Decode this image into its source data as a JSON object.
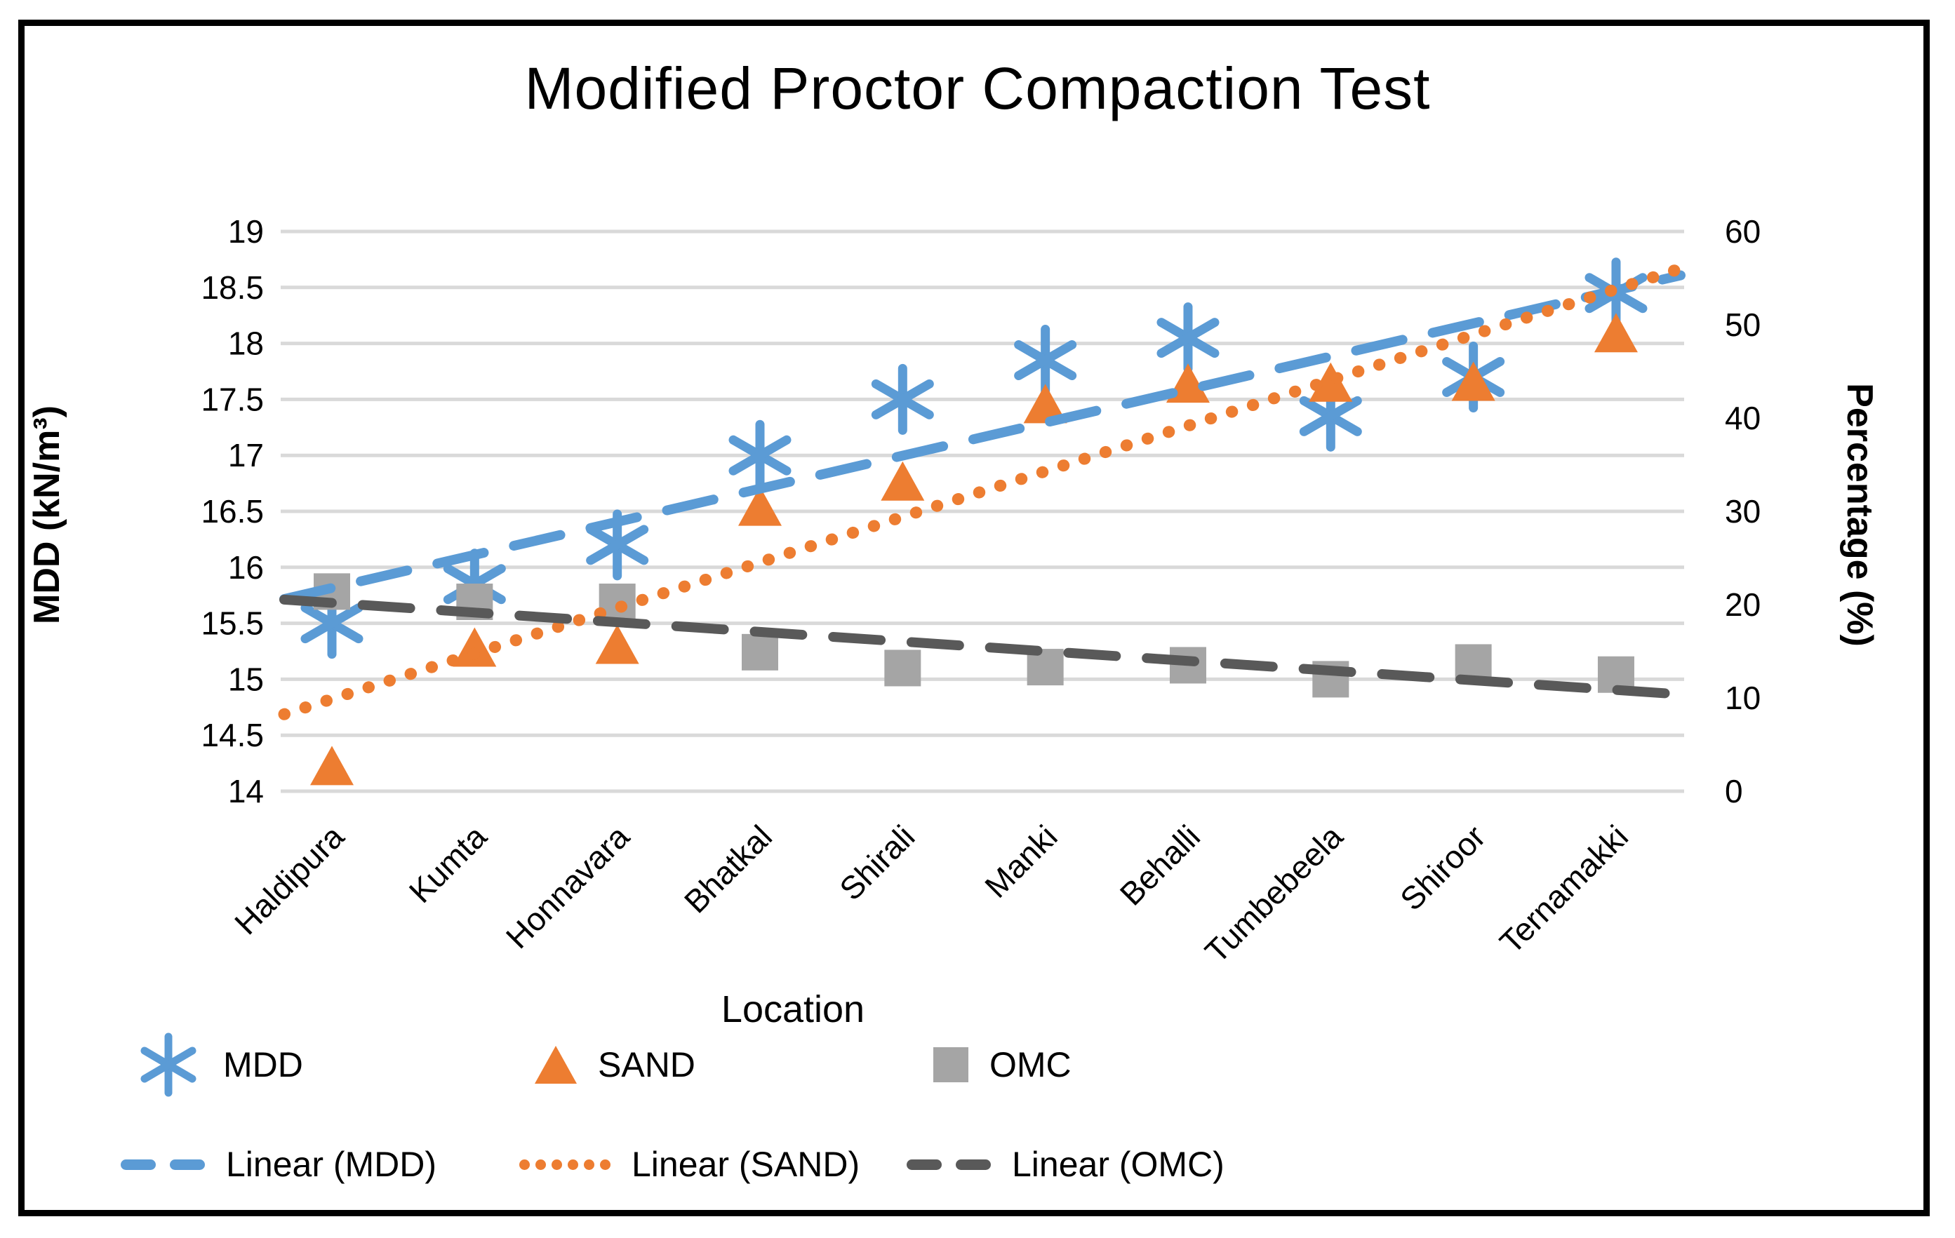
{
  "chart_data": {
    "type": "scatter",
    "title": "Modified Proctor Compaction Test",
    "xlabel": "Location",
    "ylabel_left": "MDD (kN/m³)",
    "ylabel_right": "Percentage (%)",
    "categories": [
      "Haldipura",
      "Kumta",
      "Honnavara",
      "Bhatkal",
      "Shirali",
      "Manki",
      "Behalli",
      "Tumbebeela",
      "Shiroor",
      "Ternamakki"
    ],
    "y_left": {
      "min": 14,
      "max": 19,
      "step": 0.5,
      "ticks": [
        "19",
        "18.5",
        "18",
        "17.5",
        "17",
        "16.5",
        "16",
        "15.5",
        "15",
        "14.5",
        "14"
      ]
    },
    "y_right": {
      "min": 0,
      "max": 60,
      "step": 10,
      "ticks": [
        "60",
        "50",
        "40",
        "30",
        "20",
        "10",
        "0"
      ]
    },
    "grid": true,
    "legend_position": "bottom",
    "series": [
      {
        "name": "MDD",
        "axis": "left",
        "marker": "asterisk",
        "color": "#5B9BD5",
        "values": [
          15.5,
          15.85,
          16.2,
          17.0,
          17.5,
          17.85,
          18.05,
          17.35,
          17.7,
          18.45
        ]
      },
      {
        "name": "SAND",
        "axis": "right",
        "marker": "triangle",
        "color": "#ED7D31",
        "values": [
          2.6,
          15.3,
          15.6,
          30.4,
          33.1,
          41.4,
          43.6,
          43.7,
          43.8,
          49.0
        ]
      },
      {
        "name": "OMC",
        "axis": "right",
        "marker": "square",
        "color": "#A5A5A5",
        "values": [
          21.4,
          20.3,
          20.3,
          14.9,
          13.2,
          13.3,
          13.5,
          12.0,
          13.8,
          12.5
        ]
      }
    ],
    "trendlines": [
      {
        "name": "Linear (MDD)",
        "series": "MDD",
        "style": "dashed",
        "color": "#5B9BD5"
      },
      {
        "name": "Linear (SAND)",
        "series": "SAND",
        "style": "dotted",
        "color": "#ED7D31"
      },
      {
        "name": "Linear (OMC)",
        "series": "OMC",
        "style": "dashed",
        "color": "#595959"
      }
    ],
    "colors": {
      "gridline": "#D9D9D9",
      "frame": "#000000",
      "text": "#000000"
    }
  }
}
